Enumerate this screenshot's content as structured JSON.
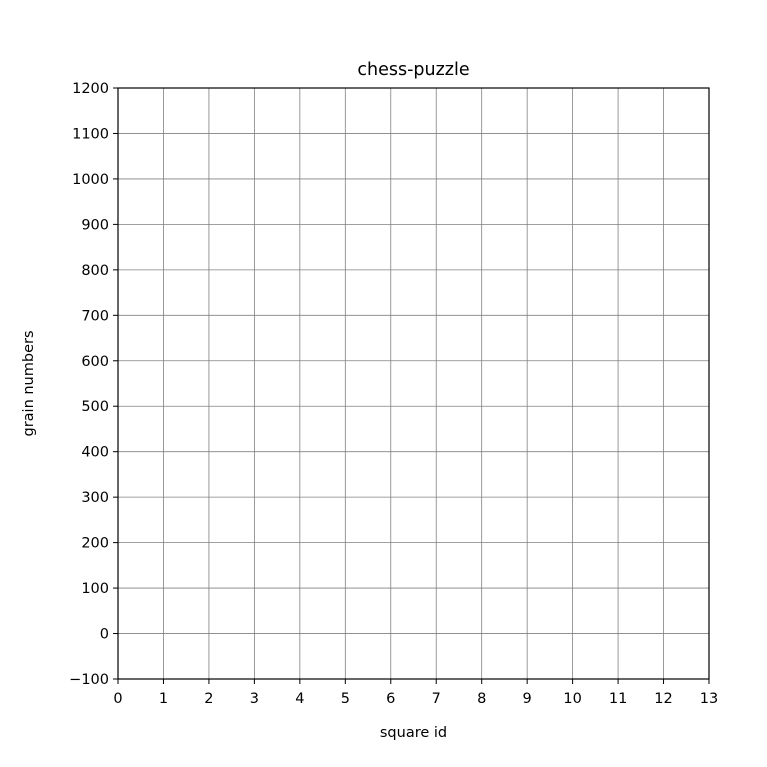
{
  "chart_data": {
    "type": "line",
    "title": "chess-puzzle",
    "xlabel": "square id",
    "ylabel": "grain numbers",
    "xlim": [
      0,
      13
    ],
    "ylim": [
      -100,
      1200
    ],
    "x_ticks": [
      0,
      1,
      2,
      3,
      4,
      5,
      6,
      7,
      8,
      9,
      10,
      11,
      12,
      13
    ],
    "y_ticks": [
      -100,
      0,
      100,
      200,
      300,
      400,
      500,
      600,
      700,
      800,
      900,
      1000,
      1100,
      1200
    ],
    "x_tick_labels": [
      "0",
      "1",
      "2",
      "3",
      "4",
      "5",
      "6",
      "7",
      "8",
      "9",
      "10",
      "11",
      "12",
      "13"
    ],
    "y_tick_labels": [
      "−100",
      "0",
      "100",
      "200",
      "300",
      "400",
      "500",
      "600",
      "700",
      "800",
      "900",
      "1000",
      "1100",
      "1200"
    ],
    "grid": true,
    "series": [],
    "colors": {
      "grid": "#808080",
      "axes": "#000000",
      "background": "#ffffff"
    }
  }
}
